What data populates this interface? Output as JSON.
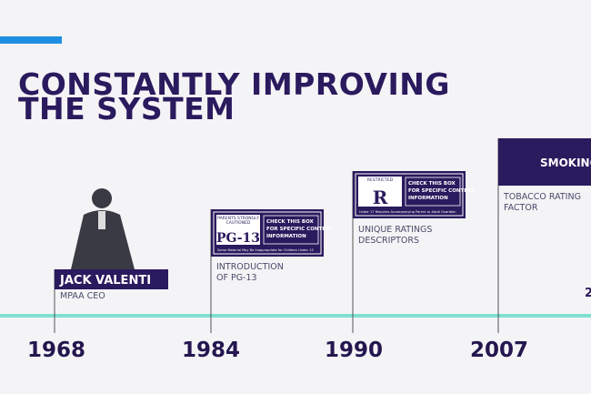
{
  "slide": {
    "title": [
      "CONSTANTLY IMPROVING",
      "THE SYSTEM"
    ],
    "milestones": [
      {
        "year": "1968",
        "name": "JACK VALENTI",
        "caption": [
          "MPAA CEO"
        ]
      },
      {
        "year": "1984",
        "caption": [
          "INTRODUCTION",
          "OF PG-13"
        ],
        "badge": {
          "top": [
            "PARENTS STRONGLY",
            "CAUTIONED"
          ],
          "rating": "PG-13",
          "box": [
            "CHECK THIS BOX",
            "FOR SPECIFIC CONTENT",
            "INFORMATION"
          ],
          "bottom": "Some Material May Be Inappropriate for Children Under 13"
        }
      },
      {
        "year": "1990",
        "caption": [
          "UNIQUE RATINGS",
          "DESCRIPTORS"
        ],
        "badge": {
          "top": [
            "RESTRICTED"
          ],
          "rating": "R",
          "box": [
            "CHECK THIS BOX",
            "FOR SPECIFIC CONTENT",
            "INFORMATION"
          ],
          "bottom": "Under 17 Requires Accompanying Parent or Adult Guardian"
        }
      },
      {
        "year": "2007",
        "name": "SMOKING",
        "caption": [
          "TOBACCO RATING",
          "FACTOR"
        ]
      }
    ],
    "edge_text": "2"
  }
}
